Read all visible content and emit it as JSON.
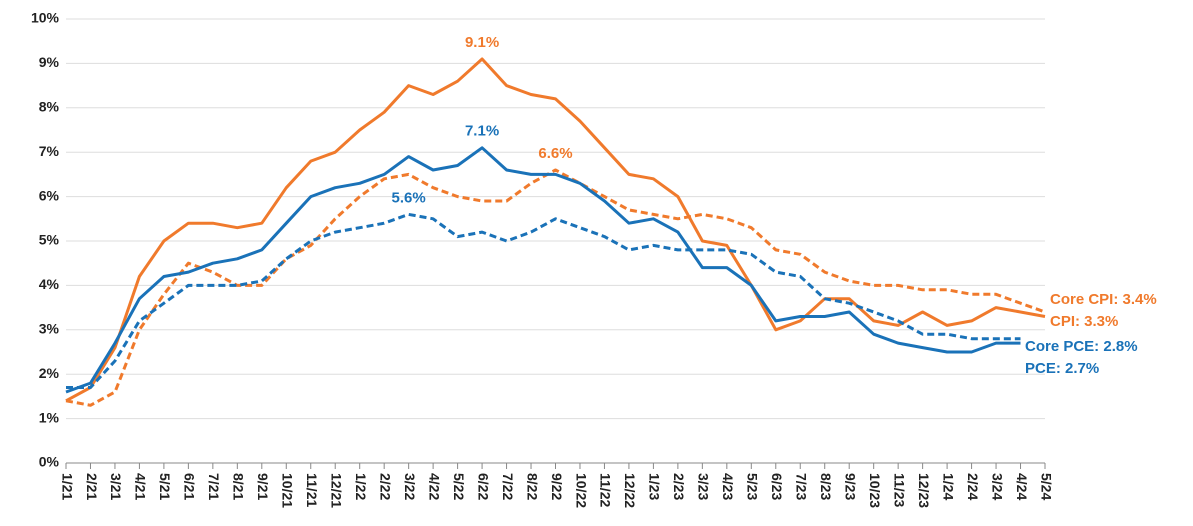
{
  "chart_data": {
    "type": "line",
    "categories": [
      "1/21",
      "2/21",
      "3/21",
      "4/21",
      "5/21",
      "6/21",
      "7/21",
      "8/21",
      "9/21",
      "10/21",
      "11/21",
      "12/21",
      "1/22",
      "2/22",
      "3/22",
      "4/22",
      "5/22",
      "6/22",
      "7/22",
      "8/22",
      "9/22",
      "10/22",
      "11/22",
      "12/22",
      "1/23",
      "2/23",
      "3/23",
      "4/23",
      "5/23",
      "6/23",
      "7/23",
      "8/23",
      "9/23",
      "10/23",
      "11/23",
      "12/23",
      "1/24",
      "2/24",
      "3/24",
      "4/24",
      "5/24"
    ],
    "series": [
      {
        "name": "Core CPI: 3.4%",
        "color": "#f07a2c",
        "dash": true,
        "peak_label": "6.6%",
        "values": [
          1.4,
          1.3,
          1.6,
          3.0,
          3.8,
          4.5,
          4.3,
          4.0,
          4.0,
          4.6,
          4.9,
          5.5,
          6.0,
          6.4,
          6.5,
          6.2,
          6.0,
          5.9,
          5.9,
          6.3,
          6.6,
          6.3,
          6.0,
          5.7,
          5.6,
          5.5,
          5.6,
          5.5,
          5.3,
          4.8,
          4.7,
          4.3,
          4.1,
          4.0,
          4.0,
          3.9,
          3.9,
          3.8,
          3.8,
          3.6,
          3.4
        ]
      },
      {
        "name": "CPI: 3.3%",
        "color": "#f07a2c",
        "dash": false,
        "peak_label": "9.1%",
        "values": [
          1.4,
          1.7,
          2.6,
          4.2,
          5.0,
          5.4,
          5.4,
          5.3,
          5.4,
          6.2,
          6.8,
          7.0,
          7.5,
          7.9,
          8.5,
          8.3,
          8.6,
          9.1,
          8.5,
          8.3,
          8.2,
          7.7,
          7.1,
          6.5,
          6.4,
          6.0,
          5.0,
          4.9,
          4.0,
          3.0,
          3.2,
          3.7,
          3.7,
          3.2,
          3.1,
          3.4,
          3.1,
          3.2,
          3.5,
          3.4,
          3.3
        ]
      },
      {
        "name": "Core PCE: 2.8%",
        "color": "#1a72b8",
        "dash": true,
        "peak_label": "5.6%",
        "values": [
          1.7,
          1.7,
          2.3,
          3.2,
          3.6,
          4.0,
          4.0,
          4.0,
          4.1,
          4.6,
          5.0,
          5.2,
          5.3,
          5.4,
          5.6,
          5.5,
          5.1,
          5.2,
          5.0,
          5.2,
          5.5,
          5.3,
          5.1,
          4.8,
          4.9,
          4.8,
          4.8,
          4.8,
          4.7,
          4.3,
          4.2,
          3.7,
          3.6,
          3.4,
          3.2,
          2.9,
          2.9,
          2.8,
          2.8,
          2.8,
          null
        ]
      },
      {
        "name": "PCE: 2.7%",
        "color": "#1a72b8",
        "dash": false,
        "peak_label": "7.1%",
        "values": [
          1.6,
          1.8,
          2.7,
          3.7,
          4.2,
          4.3,
          4.5,
          4.6,
          4.8,
          5.4,
          6.0,
          6.2,
          6.3,
          6.5,
          6.9,
          6.6,
          6.7,
          7.1,
          6.6,
          6.5,
          6.5,
          6.3,
          5.9,
          5.4,
          5.5,
          5.2,
          4.4,
          4.4,
          4.0,
          3.2,
          3.3,
          3.3,
          3.4,
          2.9,
          2.7,
          2.6,
          2.5,
          2.5,
          2.7,
          2.7,
          null
        ]
      }
    ],
    "ylim": [
      0,
      10
    ],
    "yticks": [
      {
        "value": 0,
        "label": "0%"
      },
      {
        "value": 1,
        "label": "1%"
      },
      {
        "value": 2,
        "label": "2%"
      },
      {
        "value": 3,
        "label": "3%"
      },
      {
        "value": 4,
        "label": "4%"
      },
      {
        "value": 5,
        "label": "5%"
      },
      {
        "value": 6,
        "label": "6%"
      },
      {
        "value": 7,
        "label": "7%"
      },
      {
        "value": 8,
        "label": "8%"
      },
      {
        "value": 9,
        "label": "9%"
      },
      {
        "value": 10,
        "label": "10%"
      }
    ],
    "grid": true
  }
}
